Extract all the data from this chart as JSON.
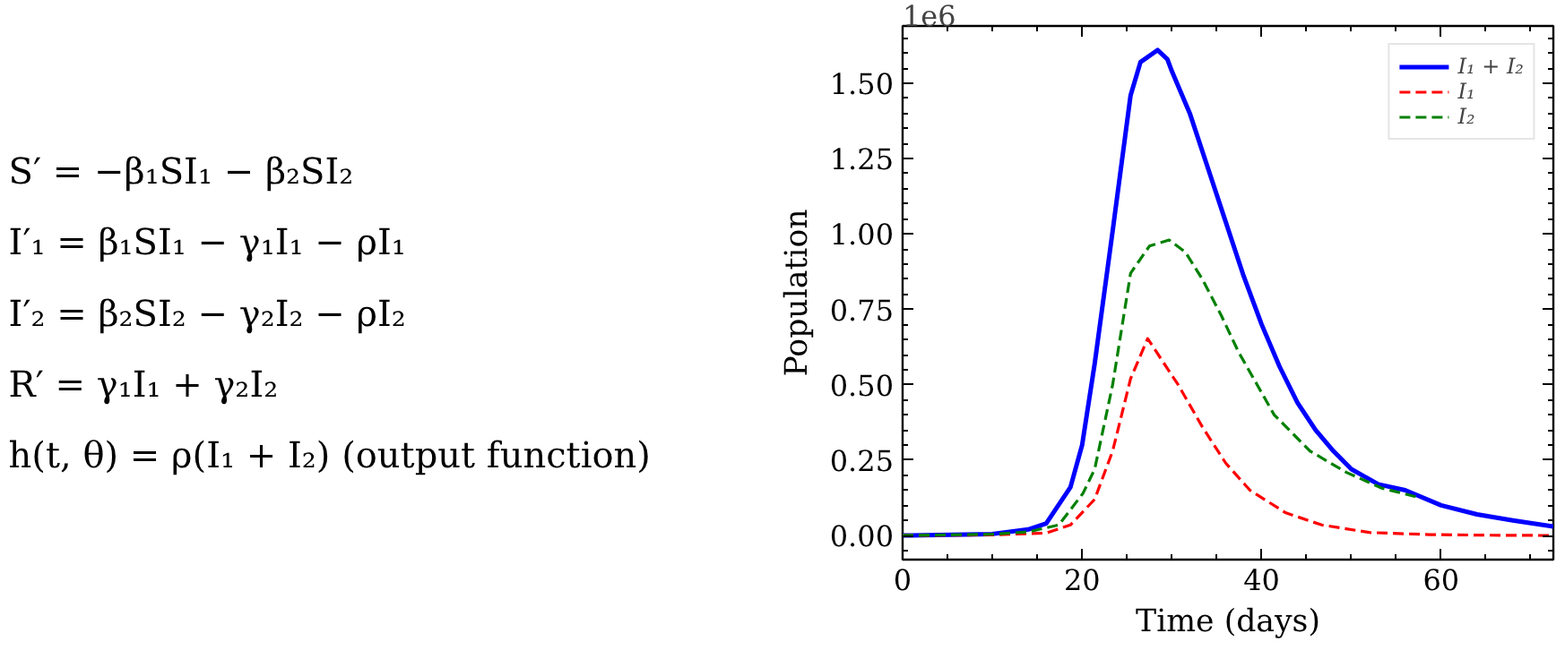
{
  "chart_data": {
    "type": "line",
    "xlabel": "Time (days)",
    "ylabel": "Population",
    "annotations": [
      "S′ = −β₁SI₁ − β₂SI₂",
      "I′₁ = β₁SI₁ − γ₁I₁ − ρI₁",
      "I′₂ = β₂SI₂ − γ₂I₂ − ρI₂",
      "R′ = γ₁I₁ + γ₂I₂",
      "h(t, θ) = ρ(I₁ + I₂)    (output function)",
      "1e6"
    ],
    "xlim": [
      0,
      72.5
    ],
    "ylim": [
      -0.08,
      1.69
    ],
    "xticks": [
      0,
      20,
      40,
      60
    ],
    "yticks": [
      {
        "value": 0,
        "label": "0.00"
      },
      {
        "value": 0.25,
        "label": "0.25"
      },
      {
        "value": 0.5,
        "label": "0.50"
      },
      {
        "value": 0.75,
        "label": "0.75"
      },
      {
        "value": 1.0,
        "label": "1.00"
      },
      {
        "value": 1.25,
        "label": "1.25"
      },
      {
        "value": 1.5,
        "label": "1.50"
      }
    ],
    "grid": false,
    "legend": "top right",
    "series": [
      {
        "name": "I₁ + I₂",
        "color": "#0000ff",
        "line_style": "solid",
        "x": [
          0,
          10,
          14,
          16,
          18.7,
          20,
          21.4,
          23.4,
          25.4,
          26.5,
          28.4,
          29.5,
          30,
          32,
          34,
          36,
          38,
          40,
          42,
          44,
          46,
          48,
          50,
          53,
          56,
          60,
          64,
          68,
          72.5
        ],
        "values": [
          0,
          0.005,
          0.02,
          0.04,
          0.16,
          0.3,
          0.57,
          1.01,
          1.46,
          1.57,
          1.61,
          1.58,
          1.54,
          1.4,
          1.22,
          1.04,
          0.86,
          0.7,
          0.56,
          0.44,
          0.35,
          0.28,
          0.22,
          0.17,
          0.15,
          0.1,
          0.07,
          0.05,
          0.03
        ]
      },
      {
        "name": "I₁",
        "color": "#ff0000",
        "line_style": "dashed",
        "x": [
          0,
          10,
          16,
          18.7,
          21.4,
          23.4,
          25.4,
          27.3,
          30.7,
          33.4,
          36,
          38.7,
          42.7,
          46.7,
          52,
          58.7,
          65,
          72.5
        ],
        "values": [
          0,
          0.002,
          0.008,
          0.035,
          0.12,
          0.28,
          0.52,
          0.653,
          0.5,
          0.36,
          0.24,
          0.15,
          0.075,
          0.035,
          0.01,
          0.003,
          0.001,
          0
        ]
      },
      {
        "name": "I₂",
        "color": "#008000",
        "line_style": "dashed",
        "x": [
          0,
          10,
          14,
          17.4,
          20.1,
          21.4,
          23.4,
          25.4,
          27.5,
          29.7,
          31.5,
          33.4,
          35.5,
          37.4,
          39.5,
          41.4,
          45.4,
          49.4,
          53.4,
          57.4
        ],
        "values": [
          0,
          0.004,
          0.012,
          0.035,
          0.14,
          0.22,
          0.5,
          0.87,
          0.96,
          0.98,
          0.94,
          0.85,
          0.73,
          0.61,
          0.5,
          0.4,
          0.28,
          0.21,
          0.157,
          0.127
        ]
      }
    ]
  }
}
